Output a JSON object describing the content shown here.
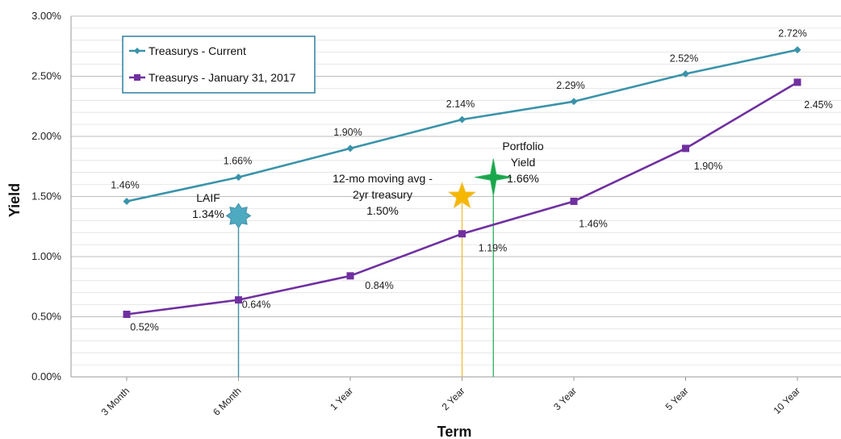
{
  "chart_data": {
    "type": "line",
    "xlabel": "Term",
    "ylabel": "Yield",
    "categories": [
      "3 Month",
      "6 Month",
      "1 Year",
      "2 Year",
      "3 Year",
      "5 Year",
      "10 Year"
    ],
    "ylim": [
      0,
      3.0
    ],
    "yticks": [
      "0.00%",
      "0.50%",
      "1.00%",
      "1.50%",
      "2.00%",
      "2.50%",
      "3.00%"
    ],
    "grid": true,
    "legend_position": "top-left",
    "series": [
      {
        "name": "Treasurys - Current",
        "color": "#3a93aa",
        "marker": "diamond",
        "values": [
          1.46,
          1.66,
          1.9,
          2.14,
          2.29,
          2.52,
          2.72
        ],
        "labels": [
          "1.46%",
          "1.66%",
          "1.90%",
          "2.14%",
          "2.29%",
          "2.52%",
          "2.72%"
        ]
      },
      {
        "name": "Treasurys - January 31, 2017",
        "color": "#7030a0",
        "marker": "square",
        "values": [
          0.52,
          0.64,
          0.84,
          1.19,
          1.46,
          1.9,
          2.45
        ],
        "labels": [
          "0.52%",
          "0.64%",
          "0.84%",
          "1.19%",
          "1.46%",
          "1.90%",
          "2.45%"
        ]
      }
    ],
    "annotations": [
      {
        "lines": [
          "LAIF",
          "1.34%"
        ],
        "value": 1.34,
        "x_position": 1.0,
        "marker": "star8",
        "color": "#4eaac0",
        "line_color": "#3f8fa6"
      },
      {
        "lines": [
          "12-mo moving avg -",
          "2yr treasury",
          "1.50%"
        ],
        "value": 1.5,
        "x_position": 3.0,
        "marker": "star5",
        "color": "#f5b700",
        "line_color": "#f0c040"
      },
      {
        "lines": [
          "Portfolio",
          "Yield",
          "1.66%"
        ],
        "value": 1.66,
        "x_position": 3.28,
        "marker": "star4",
        "color": "#1aa64a",
        "line_color": "#3ab567"
      }
    ]
  }
}
